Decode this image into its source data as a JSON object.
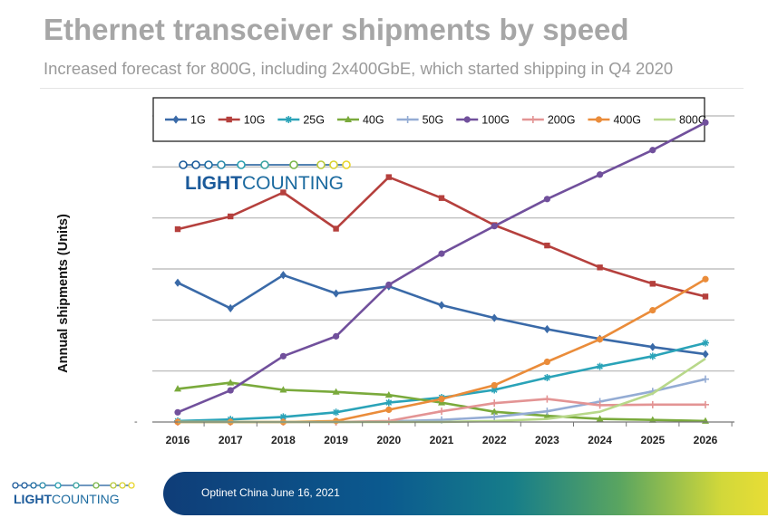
{
  "header": {
    "title": "Ethernet transceiver shipments by speed",
    "subtitle": "Increased forecast for 800G, including 2x400GbE, which started shipping in Q4 2020"
  },
  "logo": {
    "light": "LIGHT",
    "counting": "COUNTING",
    "colors": {
      "blue": "#1b5a9a",
      "teal": "#2a9fb0",
      "green": "#7ab648",
      "yellow": "#e8d52a"
    }
  },
  "footer": {
    "text": "Optinet China June 16, 2021"
  },
  "chart_data": {
    "type": "line",
    "xlabel": "",
    "ylabel": "Annual shipments (Units)",
    "y_tick_label": "-",
    "categories": [
      "2016",
      "2017",
      "2018",
      "2019",
      "2020",
      "2021",
      "2022",
      "2023",
      "2024",
      "2025",
      "2026"
    ],
    "ylim": [
      0,
      6
    ],
    "grid": true,
    "legend_position": "top",
    "series": [
      {
        "name": "1G",
        "color": "#3a6aa8",
        "marker": "diamond",
        "values": [
          2.73,
          2.23,
          2.88,
          2.52,
          2.66,
          2.29,
          2.04,
          1.82,
          1.63,
          1.47,
          1.33
        ]
      },
      {
        "name": "10G",
        "color": "#b5403d",
        "marker": "square",
        "values": [
          3.78,
          4.03,
          4.5,
          3.79,
          4.8,
          4.39,
          3.86,
          3.46,
          3.03,
          2.71,
          2.46
        ]
      },
      {
        "name": "25G",
        "color": "#2aa3b8",
        "marker": "star",
        "values": [
          0.02,
          0.05,
          0.1,
          0.19,
          0.38,
          0.48,
          0.63,
          0.87,
          1.09,
          1.29,
          1.55
        ]
      },
      {
        "name": "40G",
        "color": "#7aaa3c",
        "marker": "triangle",
        "values": [
          0.65,
          0.77,
          0.63,
          0.59,
          0.53,
          0.38,
          0.2,
          0.12,
          0.06,
          0.04,
          0.02
        ]
      },
      {
        "name": "50G",
        "color": "#94acd4",
        "marker": "plus",
        "values": [
          0.0,
          0.0,
          0.0,
          0.0,
          0.01,
          0.04,
          0.1,
          0.21,
          0.4,
          0.6,
          0.84
        ]
      },
      {
        "name": "100G",
        "color": "#71509c",
        "marker": "circle",
        "values": [
          0.19,
          0.62,
          1.29,
          1.68,
          2.69,
          3.3,
          3.84,
          4.37,
          4.85,
          5.33,
          5.87
        ]
      },
      {
        "name": "200G",
        "color": "#e39494",
        "marker": "plus",
        "values": [
          0.0,
          0.0,
          0.0,
          0.0,
          0.02,
          0.21,
          0.37,
          0.45,
          0.33,
          0.34,
          0.34
        ]
      },
      {
        "name": "400G",
        "color": "#ea8c3a",
        "marker": "circle",
        "values": [
          0.0,
          0.0,
          0.0,
          0.02,
          0.24,
          0.45,
          0.72,
          1.18,
          1.62,
          2.19,
          2.8
        ]
      },
      {
        "name": "800G",
        "color": "#b8d88a",
        "marker": "none",
        "values": [
          0.0,
          0.0,
          0.0,
          0.0,
          0.0,
          0.0,
          0.02,
          0.06,
          0.2,
          0.56,
          1.24
        ]
      }
    ]
  }
}
